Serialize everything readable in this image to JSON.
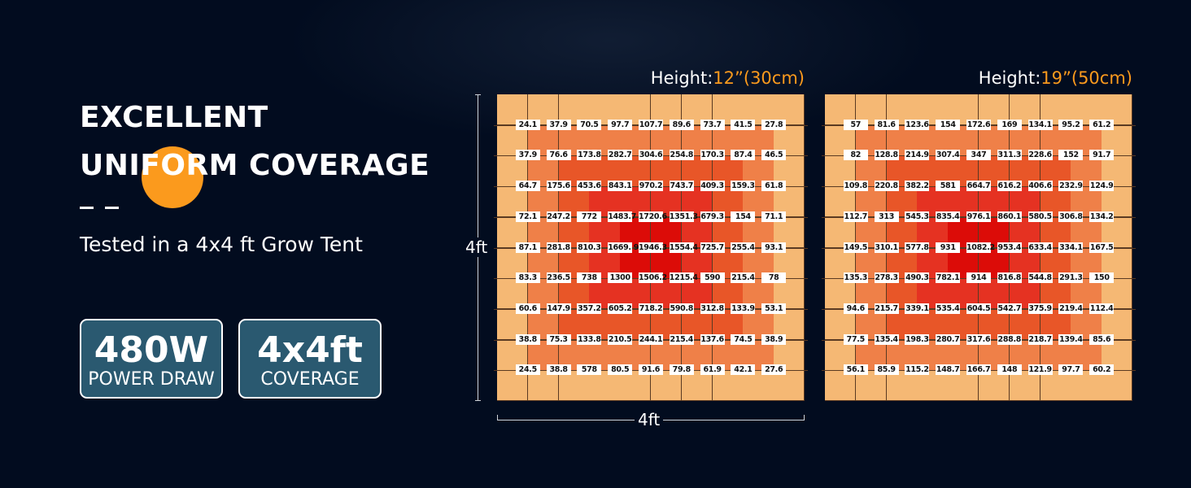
{
  "headline": {
    "line1": "EXCELLENT",
    "line2": "UNIFORM COVERAGE"
  },
  "subtitle": "Tested in a 4x4 ft Grow Tent",
  "badges": [
    {
      "value": "480W",
      "label": "POWER DRAW"
    },
    {
      "value": "4x4ft",
      "label": "COVERAGE"
    }
  ],
  "colors": {
    "accent": "#fb9a1d",
    "badge_bg": "#2a5970",
    "background": "#020c1f",
    "heat_rings": [
      "#f5b874",
      "#ef8048",
      "#e85628",
      "#e53222",
      "#dc0c08"
    ]
  },
  "chart_data": [
    {
      "type": "heatmap",
      "title_prefix": "Height:",
      "title_value": "12”(30cm)",
      "ylabel": "4ft",
      "xlabel": "4ft",
      "values": [
        [
          "24.1",
          "37.9",
          "70.5",
          "97.7",
          "107.7",
          "89.6",
          "73.7",
          "41.5",
          "27.8"
        ],
        [
          "37.9",
          "76.6",
          "173.8",
          "282.7",
          "304.6",
          "254.8",
          "170.3",
          "87.4",
          "46.5"
        ],
        [
          "64.7",
          "175.6",
          "453.6",
          "843.1",
          "970.2",
          "743.7",
          "409.3",
          "159.3",
          "61.8"
        ],
        [
          "72.1",
          "247.2",
          "772",
          "1483.7",
          "1720.6",
          "1351.3",
          "679.3",
          "154",
          "71.1"
        ],
        [
          "87.1",
          "281.8",
          "810.3",
          "1669. 9",
          "1946.3",
          "1554.4",
          "725.7",
          "255.4",
          "93.1"
        ],
        [
          "83.3",
          "236.5",
          "738",
          "1300",
          "1506.2",
          "1215.4",
          "590",
          "215.4",
          "78"
        ],
        [
          "60.6",
          "147.9",
          "357.2",
          "605.2",
          "718.2",
          "590.8",
          "312.8",
          "133.9",
          "53.1"
        ],
        [
          "38.8",
          "75.3",
          "133.8",
          "210.5",
          "244.1",
          "215.4",
          "137.6",
          "74.5",
          "38.9"
        ],
        [
          "24.5",
          "38.8",
          "578",
          "80.5",
          "91.6",
          "79.8",
          "61.9",
          "42.1",
          "27.6"
        ]
      ]
    },
    {
      "type": "heatmap",
      "title_prefix": "Height:",
      "title_value": "19”(50cm)",
      "values": [
        [
          "57",
          "81.6",
          "123.6",
          "154",
          "172.6",
          "169",
          "134.1",
          "95.2",
          "61.2"
        ],
        [
          "82",
          "128.8",
          "214.9",
          "307.4",
          "347",
          "311.3",
          "228.6",
          "152",
          "91.7"
        ],
        [
          "109.8",
          "220.8",
          "382.2",
          "581",
          "664.7",
          "616.2",
          "406.6",
          "232.9",
          "124.9"
        ],
        [
          "112.7",
          "313",
          "545.3",
          "835.4",
          "976.1",
          "860.1",
          "580.5",
          "306.8",
          "134.2"
        ],
        [
          "149.5",
          "310.1",
          "577.8",
          "931",
          "1082.2",
          "953.4",
          "633.4",
          "334.1",
          "167.5"
        ],
        [
          "135.3",
          "278.3",
          "490.3",
          "782.1",
          "914",
          "816.8",
          "544.8",
          "291.3",
          "150"
        ],
        [
          "94.6",
          "215.7",
          "339.1",
          "535.4",
          "604.5",
          "542.7",
          "375.9",
          "219.4",
          "112.4"
        ],
        [
          "77.5",
          "135.4",
          "198.3",
          "280.7",
          "317.6",
          "288.8",
          "218.7",
          "139.4",
          "85.6"
        ],
        [
          "56.1",
          "85.9",
          "115.2",
          "148.7",
          "166.7",
          "148",
          "121.9",
          "97.7",
          "60.2"
        ]
      ]
    }
  ]
}
